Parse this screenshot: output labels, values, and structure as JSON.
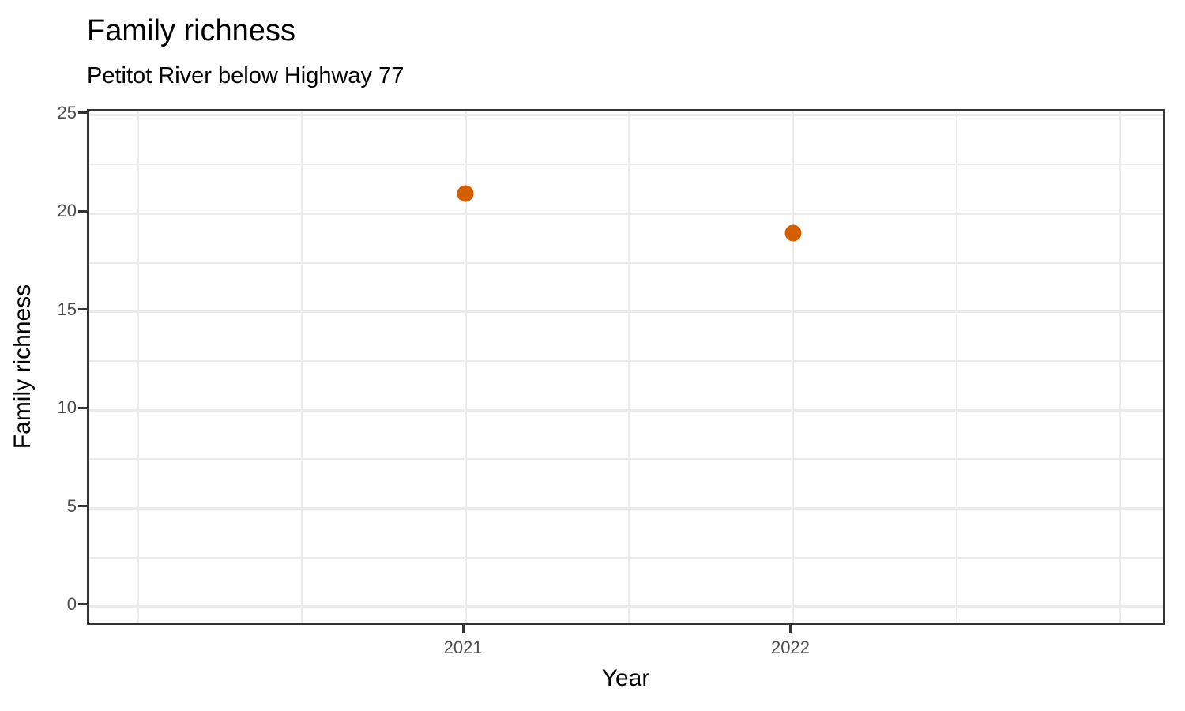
{
  "chart_data": {
    "type": "scatter",
    "title": "Family richness",
    "subtitle": "Petitot River below Highway 77",
    "xlabel": "Year",
    "ylabel": "Family richness",
    "series": [
      {
        "name": "Family richness",
        "points": [
          {
            "x": 2021,
            "y": 21
          },
          {
            "x": 2022,
            "y": 19
          }
        ]
      }
    ],
    "point_color": "#D55E00",
    "axes": {
      "x": {
        "range": [
          2019.851,
          2023.145
        ],
        "tick_labels": [
          "2021",
          "2022"
        ],
        "tick_values": [
          2021,
          2022
        ],
        "grid_major": [
          2020,
          2021,
          2022,
          2023
        ],
        "grid_minor": [
          2020.5,
          2021.5,
          2022.5
        ]
      },
      "y": {
        "range": [
          -1.045,
          25.2
        ],
        "tick_labels": [
          "0",
          "5",
          "10",
          "15",
          "20",
          "25"
        ],
        "tick_values": [
          0,
          5,
          10,
          15,
          20,
          25
        ],
        "grid_major": [
          0,
          5,
          10,
          15,
          20,
          25
        ],
        "grid_minor": [
          2.5,
          7.5,
          12.5,
          17.5,
          22.5
        ]
      }
    },
    "grid": true,
    "legend": "none",
    "colors": {
      "grid": "#EBEBEB",
      "panel_border": "#333333",
      "tick": "#333333",
      "axis_text": "#4D4D4D",
      "title_text": "#000000"
    }
  }
}
